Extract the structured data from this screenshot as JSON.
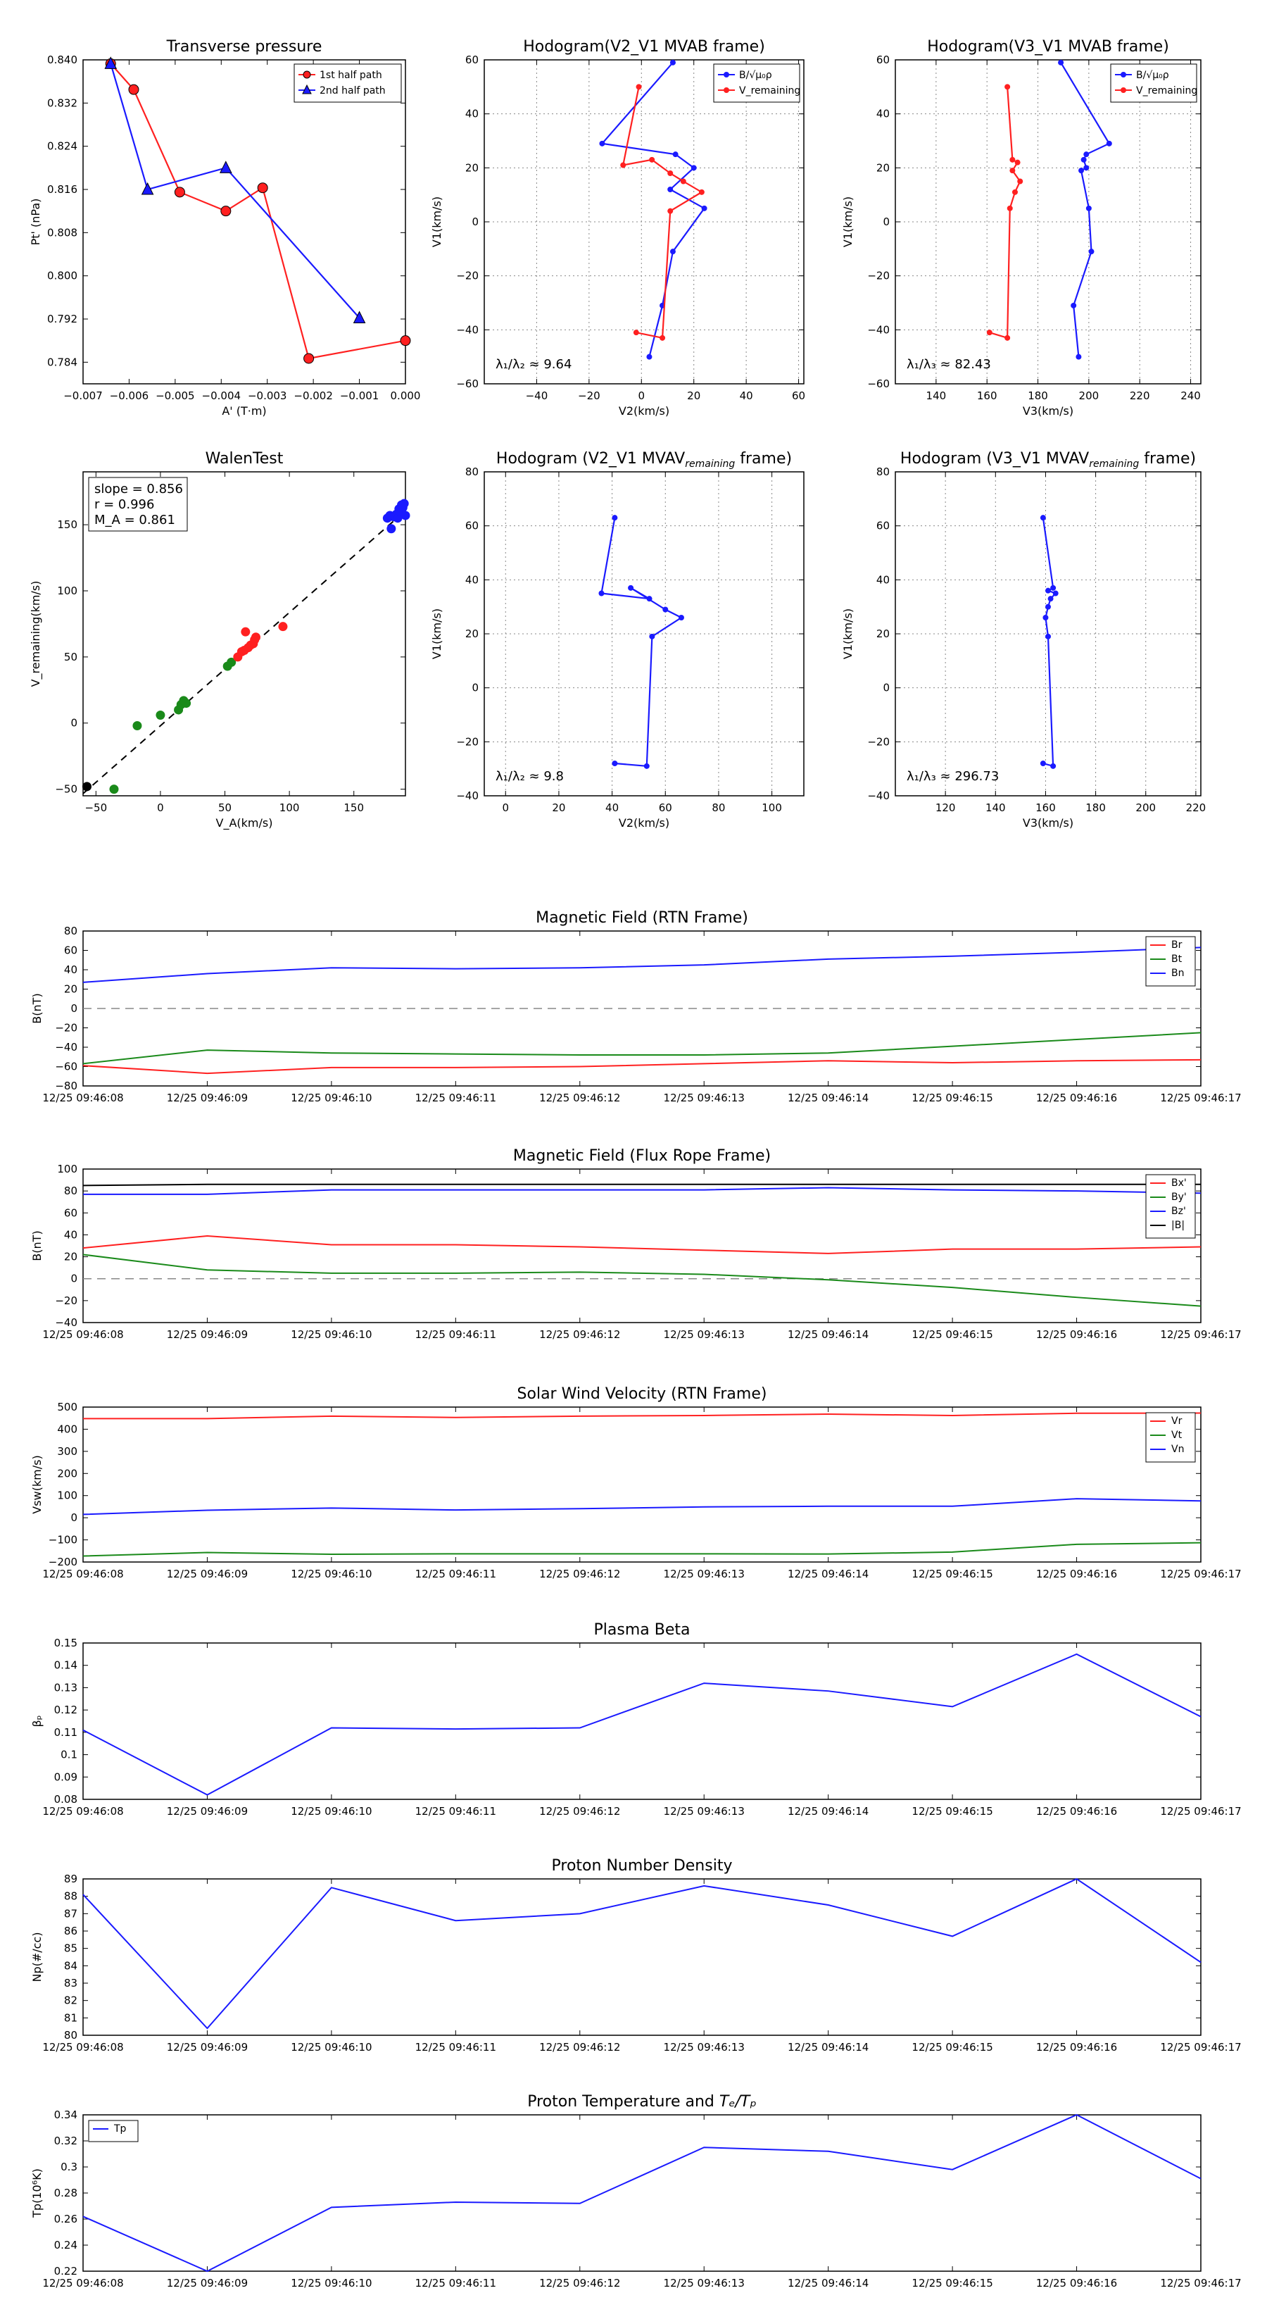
{
  "figure_colors": {
    "red": "#ff2020",
    "green": "#1a8a1a",
    "blue": "#1a1aff",
    "black": "#000000",
    "grid": "#888888"
  },
  "chart_data": [
    {
      "id": "tp",
      "type": "line",
      "title": "Transverse pressure",
      "xlabel": "A' (T·m)",
      "ylabel": "Pt' (nPa)",
      "xlim": [
        -0.007,
        0.0
      ],
      "ylim": [
        0.78,
        0.84
      ],
      "xticks": [
        -0.007,
        -0.006,
        -0.005,
        -0.004,
        -0.003,
        -0.002,
        -0.001,
        0.0
      ],
      "xticklabels": [
        "−0.007",
        "−0.006",
        "−0.005",
        "−0.004",
        "−0.003",
        "−0.002",
        "−0.001",
        "0.000"
      ],
      "yticks": [
        0.784,
        0.792,
        0.8,
        0.808,
        0.816,
        0.824,
        0.832,
        0.84
      ],
      "yticklabels": [
        "0.784",
        "0.792",
        "0.800",
        "0.808",
        "0.816",
        "0.824",
        "0.832",
        "0.840"
      ],
      "legend": {
        "placement": "top-right",
        "entries": [
          "1st half path",
          "2nd half path"
        ]
      },
      "series": [
        {
          "name": "1st half path",
          "color": "red",
          "marker": "circle",
          "x": [
            -0.0064,
            -0.0059,
            -0.0049,
            -0.0039,
            -0.0031,
            -0.0021,
            0.0
          ],
          "y": [
            0.8393,
            0.8345,
            0.8155,
            0.812,
            0.8163,
            0.7847,
            0.788
          ]
        },
        {
          "name": "2nd half path",
          "color": "blue",
          "marker": "triangle",
          "x": [
            -0.0064,
            -0.0056,
            -0.0039,
            -0.001
          ],
          "y": [
            0.8393,
            0.816,
            0.82,
            0.7922
          ]
        }
      ]
    },
    {
      "id": "h1",
      "type": "line",
      "title": "Hodogram(V2_V1 MVAB frame)",
      "xlabel": "V2(km/s)",
      "ylabel": "V1(km/s)",
      "xlim": [
        -60,
        62
      ],
      "ylim": [
        -60,
        60
      ],
      "xticks": [
        -40,
        -20,
        0,
        20,
        40,
        60
      ],
      "yticks": [
        -60,
        -40,
        -20,
        0,
        20,
        40,
        60
      ],
      "annotation": "λ₁/λ₂ ≈ 9.64",
      "legend": {
        "placement": "top-right",
        "entries": [
          "B/√μ₀ρ",
          "V_remaining"
        ]
      },
      "series": [
        {
          "name": "B/√μ₀ρ",
          "color": "blue",
          "x": [
            12,
            -15,
            13,
            20,
            11,
            24,
            12,
            8,
            3
          ],
          "y": [
            59,
            29,
            25,
            20,
            12,
            5,
            -11,
            -31,
            -50
          ]
        },
        {
          "name": "V_remaining",
          "color": "red",
          "x": [
            -1,
            -7,
            4,
            11,
            16,
            23,
            11,
            8,
            -2
          ],
          "y": [
            50,
            21,
            23,
            18,
            15,
            11,
            4,
            -43,
            -41
          ]
        }
      ]
    },
    {
      "id": "h2",
      "type": "line",
      "title": "Hodogram(V3_V1 MVAB frame)",
      "xlabel": "V3(km/s)",
      "ylabel": "V1(km/s)",
      "xlim": [
        124,
        244
      ],
      "ylim": [
        -60,
        60
      ],
      "xticks": [
        140,
        160,
        180,
        200,
        220,
        240
      ],
      "yticks": [
        -60,
        -40,
        -20,
        0,
        20,
        40,
        60
      ],
      "annotation": "λ₁/λ₃ ≈ 82.43",
      "legend": {
        "placement": "top-right",
        "entries": [
          "B/√μ₀ρ",
          "V_remaining"
        ]
      },
      "series": [
        {
          "name": "B/√μ₀ρ",
          "color": "blue",
          "x": [
            189,
            208,
            199,
            198,
            199,
            197,
            200,
            201,
            194,
            196
          ],
          "y": [
            59,
            29,
            25,
            23,
            20,
            19,
            5,
            -11,
            -31,
            -50
          ]
        },
        {
          "name": "V_remaining",
          "color": "red",
          "x": [
            168,
            170,
            172,
            170,
            173,
            171,
            169,
            168,
            161
          ],
          "y": [
            50,
            23,
            22,
            19,
            15,
            11,
            5,
            -43,
            -41
          ]
        }
      ]
    },
    {
      "id": "walen",
      "type": "scatter",
      "title": "WalenTest",
      "xlabel": "V_A(km/s)",
      "ylabel": "V_remaining(km/s)",
      "xlim": [
        -60,
        190
      ],
      "ylim": [
        -55,
        190
      ],
      "xticks": [
        -50,
        0,
        50,
        100,
        150
      ],
      "yticks": [
        -50,
        0,
        50,
        100,
        150
      ],
      "stats": [
        "slope = 0.856",
        "r = 0.996",
        "M_A = 0.861"
      ],
      "fit": {
        "slope": 0.856,
        "intercept": -2
      },
      "series": [
        {
          "name": "green",
          "color": "green",
          "x": [
            -36,
            -18,
            0,
            14,
            16,
            18,
            20,
            52,
            55
          ],
          "y": [
            -50,
            -2,
            6,
            10,
            14,
            17,
            15,
            43,
            46
          ]
        },
        {
          "name": "red",
          "color": "red",
          "x": [
            60,
            63,
            65,
            68,
            70,
            72,
            73,
            74,
            95,
            66
          ],
          "y": [
            50,
            54,
            55,
            57,
            59,
            60,
            63,
            65,
            73,
            69
          ]
        },
        {
          "name": "blue",
          "color": "blue",
          "x": [
            176,
            178,
            179,
            181,
            183,
            184,
            185,
            186,
            187,
            188,
            189,
            190
          ],
          "y": [
            155,
            157,
            147,
            156,
            158,
            155,
            162,
            160,
            165,
            163,
            166,
            157
          ]
        },
        {
          "name": "black",
          "color": "black",
          "x": [
            -57
          ],
          "y": [
            -48
          ]
        }
      ]
    },
    {
      "id": "h3",
      "type": "line",
      "title": "Hodogram (V2_V1 MVAV",
      "title_sub": "remaining",
      "title_tail": " frame)",
      "xlabel": "V2(km/s)",
      "ylabel": "V1(km/s)",
      "xlim": [
        -8,
        112
      ],
      "ylim": [
        -40,
        80
      ],
      "xticks": [
        0,
        20,
        40,
        60,
        80,
        100
      ],
      "yticks": [
        -40,
        -20,
        0,
        20,
        40,
        60,
        80
      ],
      "annotation": "λ₁/λ₂ ≈ 9.8",
      "series": [
        {
          "name": "V",
          "color": "blue",
          "x": [
            41,
            36,
            54,
            47,
            60,
            66,
            55,
            53,
            41
          ],
          "y": [
            63,
            35,
            33,
            37,
            29,
            26,
            19,
            -29,
            -28
          ]
        }
      ]
    },
    {
      "id": "h4",
      "type": "line",
      "title": "Hodogram (V3_V1 MVAV",
      "title_sub": "remaining",
      "title_tail": " frame)",
      "xlabel": "V3(km/s)",
      "ylabel": "V1(km/s)",
      "xlim": [
        100,
        222
      ],
      "ylim": [
        -40,
        80
      ],
      "xticks": [
        120,
        140,
        160,
        180,
        200,
        220
      ],
      "yticks": [
        -40,
        -20,
        0,
        20,
        40,
        60,
        80
      ],
      "annotation": "λ₁/λ₃ ≈ 296.73",
      "series": [
        {
          "name": "V",
          "color": "blue",
          "x": [
            159,
            163,
            161,
            164,
            162,
            161,
            160,
            161,
            163,
            159
          ],
          "y": [
            63,
            37,
            36,
            35,
            33,
            30,
            26,
            19,
            -29,
            -28
          ]
        }
      ]
    },
    {
      "id": "bmag",
      "type": "line",
      "title": "Magnetic Field (RTN Frame)",
      "ylabel": "B(nT)",
      "ylim": [
        -80,
        80
      ],
      "yticks": [
        -80,
        -60,
        -40,
        -20,
        0,
        20,
        40,
        60,
        80
      ],
      "zero_line": true,
      "categories": [
        "12/25 09:46:08",
        "12/25 09:46:09",
        "12/25 09:46:10",
        "12/25 09:46:11",
        "12/25 09:46:12",
        "12/25 09:46:13",
        "12/25 09:46:14",
        "12/25 09:46:15",
        "12/25 09:46:16",
        "12/25 09:46:17"
      ],
      "legend": {
        "placement": "top-right"
      },
      "series": [
        {
          "name": "Br",
          "color": "red",
          "values": [
            -59,
            -67,
            -61,
            -61,
            -60,
            -57,
            -54,
            -56,
            -54,
            -53
          ]
        },
        {
          "name": "Bt",
          "color": "green",
          "values": [
            -57,
            -43,
            -46,
            -47,
            -48,
            -48,
            -46,
            -39,
            -32,
            -25
          ]
        },
        {
          "name": "Bn",
          "color": "blue",
          "values": [
            27,
            36,
            42,
            41,
            42,
            45,
            51,
            54,
            58,
            63
          ]
        }
      ]
    },
    {
      "id": "bfr",
      "type": "line",
      "title": "Magnetic Field (Flux Rope Frame)",
      "ylabel": "B(nT)",
      "ylim": [
        -40,
        100
      ],
      "yticks": [
        -40,
        -20,
        0,
        20,
        40,
        60,
        80,
        100
      ],
      "zero_line": true,
      "categories": [
        "12/25 09:46:08",
        "12/25 09:46:09",
        "12/25 09:46:10",
        "12/25 09:46:11",
        "12/25 09:46:12",
        "12/25 09:46:13",
        "12/25 09:46:14",
        "12/25 09:46:15",
        "12/25 09:46:16",
        "12/25 09:46:17"
      ],
      "legend": {
        "placement": "top-right"
      },
      "series": [
        {
          "name": "Bx'",
          "color": "red",
          "values": [
            28,
            39,
            31,
            31,
            29,
            26,
            23,
            27,
            27,
            29
          ]
        },
        {
          "name": "By'",
          "color": "green",
          "values": [
            22,
            8,
            5,
            5,
            6,
            4,
            -1,
            -8,
            -17,
            -25
          ]
        },
        {
          "name": "Bz'",
          "color": "blue",
          "values": [
            77,
            77,
            81,
            81,
            81,
            81,
            83,
            81,
            80,
            78
          ]
        },
        {
          "name": "|B|",
          "color": "black",
          "values": [
            85,
            86,
            86,
            86,
            86,
            86,
            86,
            86,
            86,
            86
          ]
        }
      ]
    },
    {
      "id": "vsw",
      "type": "line",
      "title": "Solar Wind Velocity (RTN Frame)",
      "ylabel": "Vsw(km/s)",
      "ylim": [
        -200,
        500
      ],
      "yticks": [
        -200,
        -100,
        0,
        100,
        200,
        300,
        400,
        500
      ],
      "categories": [
        "12/25 09:46:08",
        "12/25 09:46:09",
        "12/25 09:46:10",
        "12/25 09:46:11",
        "12/25 09:46:12",
        "12/25 09:46:13",
        "12/25 09:46:14",
        "12/25 09:46:15",
        "12/25 09:46:16",
        "12/25 09:46:17"
      ],
      "legend": {
        "placement": "top-right"
      },
      "series": [
        {
          "name": "Vr",
          "color": "red",
          "values": [
            448,
            448,
            459,
            453,
            459,
            462,
            468,
            462,
            472,
            473
          ]
        },
        {
          "name": "Vt",
          "color": "green",
          "values": [
            -173,
            -157,
            -165,
            -163,
            -163,
            -163,
            -164,
            -155,
            -120,
            -113
          ]
        },
        {
          "name": "Vn",
          "color": "blue",
          "values": [
            15,
            34,
            44,
            35,
            41,
            49,
            52,
            52,
            86,
            76
          ]
        }
      ]
    },
    {
      "id": "beta",
      "type": "line",
      "title": "Plasma Beta",
      "ylabel": "βₚ",
      "ylim": [
        0.08,
        0.15
      ],
      "yticks": [
        0.08,
        0.09,
        0.1,
        0.11,
        0.12,
        0.13,
        0.14,
        0.15
      ],
      "categories": [
        "12/25 09:46:08",
        "12/25 09:46:09",
        "12/25 09:46:10",
        "12/25 09:46:11",
        "12/25 09:46:12",
        "12/25 09:46:13",
        "12/25 09:46:14",
        "12/25 09:46:15",
        "12/25 09:46:16",
        "12/25 09:46:17"
      ],
      "series": [
        {
          "name": "beta",
          "color": "blue",
          "values": [
            0.111,
            0.082,
            0.112,
            0.1115,
            0.112,
            0.132,
            0.1285,
            0.1215,
            0.145,
            0.117
          ]
        }
      ]
    },
    {
      "id": "np",
      "type": "line",
      "title": "Proton Number Density",
      "ylabel": "Np(#/cc)",
      "ylim": [
        80,
        89
      ],
      "yticks": [
        80,
        81,
        82,
        83,
        84,
        85,
        86,
        87,
        88,
        89
      ],
      "categories": [
        "12/25 09:46:08",
        "12/25 09:46:09",
        "12/25 09:46:10",
        "12/25 09:46:11",
        "12/25 09:46:12",
        "12/25 09:46:13",
        "12/25 09:46:14",
        "12/25 09:46:15",
        "12/25 09:46:16",
        "12/25 09:46:17"
      ],
      "series": [
        {
          "name": "Np",
          "color": "blue",
          "values": [
            88.1,
            80.4,
            88.5,
            86.6,
            87.0,
            88.6,
            87.5,
            85.7,
            89.0,
            84.2
          ]
        }
      ]
    },
    {
      "id": "tpt",
      "type": "line",
      "title": "Proton Temperature and ",
      "title_math": "Tₑ/Tₚ",
      "ylabel": "Tp(10⁶K)",
      "ylim": [
        0.22,
        0.34
      ],
      "yticks": [
        0.22,
        0.24,
        0.26,
        0.28,
        0.3,
        0.32,
        0.34
      ],
      "categories": [
        "12/25 09:46:08",
        "12/25 09:46:09",
        "12/25 09:46:10",
        "12/25 09:46:11",
        "12/25 09:46:12",
        "12/25 09:46:13",
        "12/25 09:46:14",
        "12/25 09:46:15",
        "12/25 09:46:16",
        "12/25 09:46:17"
      ],
      "legend": {
        "placement": "top-left"
      },
      "series": [
        {
          "name": "Tp",
          "color": "blue",
          "values": [
            0.262,
            0.22,
            0.269,
            0.273,
            0.272,
            0.315,
            0.312,
            0.298,
            0.34,
            0.291
          ]
        }
      ]
    }
  ]
}
